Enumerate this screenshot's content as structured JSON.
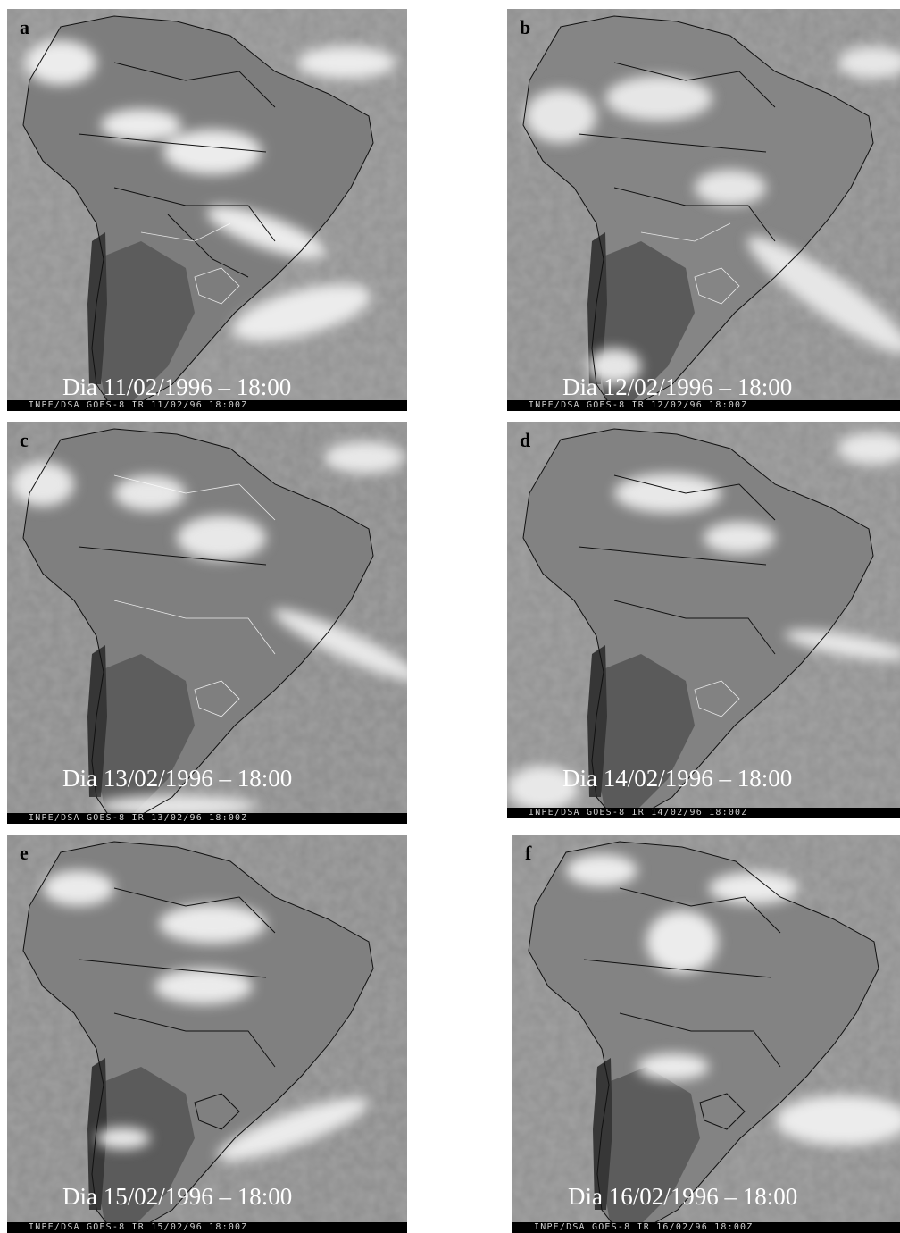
{
  "panels": [
    {
      "letter": "a",
      "caption": "Dia 11/02/1996 – 18:00",
      "strip": "INPE/DSA GOES-8 IR 11/02/96 18:00Z"
    },
    {
      "letter": "b",
      "caption": "Dia 12/02/1996 – 18:00",
      "strip": "INPE/DSA GOES-8 IR 12/02/96 18:00Z"
    },
    {
      "letter": "c",
      "caption": "Dia 13/02/1996 – 18:00",
      "strip": "INPE/DSA GOES-8 IR 13/02/96 18:00Z"
    },
    {
      "letter": "d",
      "caption": "Dia 14/02/1996 – 18:00",
      "strip": "INPE/DSA GOES-8 IR 14/02/96 18:00Z"
    },
    {
      "letter": "e",
      "caption": "Dia 15/02/1996 – 18:00",
      "strip": "INPE/DSA GOES-8 IR 15/02/96 18:00Z"
    },
    {
      "letter": "f",
      "caption": "Dia 16/02/1996 – 18:00",
      "strip": "INPE/DSA GOES-8 IR 16/02/96 18:00Z"
    }
  ]
}
